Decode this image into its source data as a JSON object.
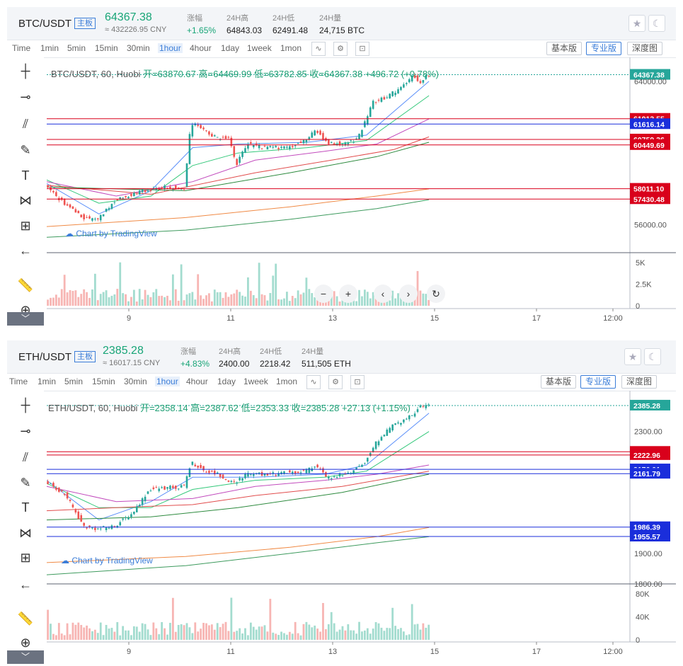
{
  "panels": [
    {
      "pair": "BTC/USDT",
      "badge": "主板",
      "price": "64367.38",
      "price_cny": "≈ 432226.95 CNY",
      "stats": [
        {
          "label": "涨幅",
          "value": "+1.65%",
          "up": true
        },
        {
          "label": "24H高",
          "value": "64843.03"
        },
        {
          "label": "24H低",
          "value": "62491.48"
        },
        {
          "label": "24H量",
          "value": "24,715 BTC"
        }
      ],
      "chart_info": {
        "symbol": "BTC/USDT, 60, Huobi",
        "open": "开=63870.67",
        "high": "高=64469.99",
        "low": "低=63782.85",
        "close": "收=64367.38",
        "change": "+496.72 (+0.78%)"
      },
      "chart_data": {
        "type": "candlestick",
        "x_ticks": [
          "9",
          "11",
          "13",
          "15",
          "17",
          "12:00"
        ],
        "y_ticks": [
          64000,
          56000
        ],
        "y_tick_labels": [
          "64000.00",
          "56000.00"
        ],
        "ylim": [
          54600,
          65100
        ],
        "last_price": 64367.38,
        "last_price_label": "64367.38",
        "levels": [
          {
            "value": 61913.55,
            "label": "61913.55",
            "color": "#d9001b"
          },
          {
            "value": 61616.14,
            "label": "61616.14",
            "color": "#1a2edb"
          },
          {
            "value": 60759.36,
            "label": "60759.36",
            "color": "#d9001b"
          },
          {
            "value": 60449.69,
            "label": "60449.69",
            "color": "#d9001b"
          },
          {
            "value": 58011.1,
            "label": "58011.10",
            "color": "#d9001b"
          },
          {
            "value": 57430.48,
            "label": "57430.48",
            "color": "#d9001b"
          }
        ],
        "volume_ticks": [
          "5K",
          "2.5K",
          "0"
        ],
        "volume_max": 6000,
        "path": [
          [
            0,
            58200
          ],
          [
            12,
            57100
          ],
          [
            22,
            56400
          ],
          [
            30,
            56300
          ],
          [
            40,
            57300
          ],
          [
            56,
            57900
          ],
          [
            70,
            58100
          ],
          [
            80,
            58050
          ],
          [
            84,
            61700
          ],
          [
            92,
            61200
          ],
          [
            100,
            60800
          ],
          [
            106,
            60900
          ],
          [
            110,
            59300
          ],
          [
            116,
            60500
          ],
          [
            126,
            60300
          ],
          [
            140,
            60300
          ],
          [
            150,
            60700
          ],
          [
            156,
            61300
          ],
          [
            162,
            60600
          ],
          [
            172,
            60500
          ],
          [
            180,
            60800
          ],
          [
            184,
            61700
          ],
          [
            188,
            62800
          ],
          [
            196,
            63100
          ],
          [
            206,
            63700
          ],
          [
            212,
            64400
          ],
          [
            216,
            63900
          ],
          [
            220,
            64367
          ]
        ],
        "ma": [
          {
            "color": "#5b8ff9",
            "pts": [
              [
                0,
                58300
              ],
              [
                30,
                56600
              ],
              [
                60,
                57900
              ],
              [
                84,
                60300
              ],
              [
                110,
                60500
              ],
              [
                150,
                60600
              ],
              [
                184,
                61000
              ],
              [
                220,
                64000
              ]
            ]
          },
          {
            "color": "#33c87a",
            "pts": [
              [
                0,
                58500
              ],
              [
                30,
                57200
              ],
              [
                60,
                57600
              ],
              [
                84,
                59300
              ],
              [
                110,
                60000
              ],
              [
                150,
                60300
              ],
              [
                184,
                60700
              ],
              [
                220,
                63200
              ]
            ]
          },
          {
            "color": "#c24bbd",
            "pts": [
              [
                0,
                58400
              ],
              [
                40,
                57600
              ],
              [
                84,
                58400
              ],
              [
                120,
                59600
              ],
              [
                160,
                60100
              ],
              [
                190,
                60500
              ],
              [
                220,
                61900
              ]
            ]
          },
          {
            "color": "#e14c4c",
            "pts": [
              [
                0,
                58200
              ],
              [
                60,
                57700
              ],
              [
                120,
                58900
              ],
              [
                170,
                59700
              ],
              [
                200,
                60200
              ],
              [
                220,
                60900
              ]
            ]
          },
          {
            "color": "#2d8a3e",
            "pts": [
              [
                0,
                58100
              ],
              [
                80,
                57900
              ],
              [
                140,
                58900
              ],
              [
                190,
                59800
              ],
              [
                220,
                60600
              ]
            ]
          },
          {
            "color": "#f08a45",
            "pts": [
              [
                0,
                55900
              ],
              [
                80,
                56400
              ],
              [
                140,
                57000
              ],
              [
                190,
                57600
              ],
              [
                220,
                58000
              ]
            ]
          },
          {
            "color": "#3d9a5d",
            "pts": [
              [
                0,
                55300
              ],
              [
                80,
                55700
              ],
              [
                140,
                56300
              ],
              [
                190,
                56900
              ],
              [
                220,
                57400
              ]
            ]
          }
        ]
      }
    },
    {
      "pair": "ETH/USDT",
      "badge": "主板",
      "price": "2385.28",
      "price_cny": "≈ 16017.15 CNY",
      "stats": [
        {
          "label": "涨幅",
          "value": "+4.83%",
          "up": true
        },
        {
          "label": "24H高",
          "value": "2400.00"
        },
        {
          "label": "24H低",
          "value": "2218.42"
        },
        {
          "label": "24H量",
          "value": "511,505 ETH"
        }
      ],
      "chart_info": {
        "symbol": "ETH/USDT, 60, Huobi",
        "open": "开=2358.14",
        "high": "高=2387.62",
        "low": "低=2353.33",
        "close": "收=2385.28",
        "change": "+27.13 (+1.15%)"
      },
      "chart_data": {
        "type": "candlestick",
        "x_ticks": [
          "9",
          "11",
          "13",
          "15",
          "17",
          "12:00"
        ],
        "y_ticks": [
          2300,
          1900,
          1800
        ],
        "y_tick_labels": [
          "2300.00",
          "1900.00",
          "1800.00"
        ],
        "ylim": [
          1800,
          2420
        ],
        "last_price": 2385.28,
        "last_price_label": "2385.28",
        "levels": [
          {
            "value": 2233.53,
            "label": "2233.53",
            "color": "#d9001b"
          },
          {
            "value": 2222.96,
            "label": "2222.96",
            "color": "#d9001b"
          },
          {
            "value": 2176.01,
            "label": "2176.01",
            "color": "#1a2edb"
          },
          {
            "value": 2161.79,
            "label": "2161.79",
            "color": "#1a2edb"
          },
          {
            "value": 1986.39,
            "label": "1986.39",
            "color": "#1a2edb"
          },
          {
            "value": 1955.57,
            "label": "1955.57",
            "color": "#1a2edb"
          }
        ],
        "volume_ticks": [
          "80K",
          "40K",
          "0"
        ],
        "volume_max": 85000,
        "path": [
          [
            0,
            2140
          ],
          [
            12,
            2090
          ],
          [
            22,
            1990
          ],
          [
            30,
            1980
          ],
          [
            40,
            1990
          ],
          [
            50,
            2030
          ],
          [
            60,
            2110
          ],
          [
            80,
            2120
          ],
          [
            84,
            2200
          ],
          [
            92,
            2170
          ],
          [
            100,
            2160
          ],
          [
            108,
            2130
          ],
          [
            116,
            2160
          ],
          [
            130,
            2160
          ],
          [
            150,
            2170
          ],
          [
            156,
            2190
          ],
          [
            162,
            2150
          ],
          [
            172,
            2160
          ],
          [
            180,
            2180
          ],
          [
            184,
            2200
          ],
          [
            190,
            2260
          ],
          [
            200,
            2320
          ],
          [
            210,
            2350
          ],
          [
            216,
            2380
          ],
          [
            220,
            2385
          ]
        ],
        "ma": [
          {
            "color": "#5b8ff9",
            "pts": [
              [
                0,
                2140
              ],
              [
                30,
                2010
              ],
              [
                60,
                2070
              ],
              [
                84,
                2150
              ],
              [
                120,
                2150
              ],
              [
                160,
                2160
              ],
              [
                184,
                2190
              ],
              [
                220,
                2360
              ]
            ]
          },
          {
            "color": "#33c87a",
            "pts": [
              [
                0,
                2130
              ],
              [
                30,
                2050
              ],
              [
                60,
                2050
              ],
              [
                84,
                2110
              ],
              [
                120,
                2140
              ],
              [
                160,
                2150
              ],
              [
                184,
                2170
              ],
              [
                220,
                2300
              ]
            ]
          },
          {
            "color": "#c24bbd",
            "pts": [
              [
                0,
                2120
              ],
              [
                40,
                2070
              ],
              [
                84,
                2080
              ],
              [
                120,
                2120
              ],
              [
                160,
                2140
              ],
              [
                190,
                2160
              ],
              [
                220,
                2190
              ]
            ]
          },
          {
            "color": "#e14c4c",
            "pts": [
              [
                0,
                2040
              ],
              [
                40,
                2050
              ],
              [
                84,
                2060
              ],
              [
                120,
                2090
              ],
              [
                170,
                2120
              ],
              [
                220,
                2170
              ]
            ]
          },
          {
            "color": "#2d8a3e",
            "pts": [
              [
                0,
                2010
              ],
              [
                60,
                2020
              ],
              [
                110,
                2050
              ],
              [
                170,
                2100
              ],
              [
                220,
                2160
              ]
            ]
          },
          {
            "color": "#f08a45",
            "pts": [
              [
                0,
                1870
              ],
              [
                80,
                1890
              ],
              [
                140,
                1920
              ],
              [
                190,
                1955
              ],
              [
                220,
                1985
              ]
            ]
          },
          {
            "color": "#3d9a5d",
            "pts": [
              [
                0,
                1830
              ],
              [
                80,
                1860
              ],
              [
                140,
                1900
              ],
              [
                190,
                1935
              ],
              [
                220,
                1955
              ]
            ]
          }
        ]
      }
    }
  ],
  "timeframes": [
    "Time",
    "1min",
    "5min",
    "15min",
    "30min",
    "1hour",
    "4hour",
    "1day",
    "1week",
    "1mon"
  ],
  "active_timeframe": "1hour",
  "versions": {
    "basic": "基本版",
    "pro": "专业版",
    "depth": "深度图"
  },
  "watermark": "Chart by TradingView",
  "icons": [
    "crosshair-icon",
    "horizontal-line-icon",
    "trend-lines-icon",
    "brush-icon",
    "text-icon",
    "pattern-icon",
    "measure-icon",
    "back-arrow-icon",
    "ruler-icon",
    "zoom-icon",
    "star-icon",
    "moon-icon",
    "indicators-icon",
    "settings-icon",
    "screenshot-icon"
  ],
  "nav_buttons": [
    "−",
    "+",
    "‹",
    "›",
    "↻"
  ]
}
